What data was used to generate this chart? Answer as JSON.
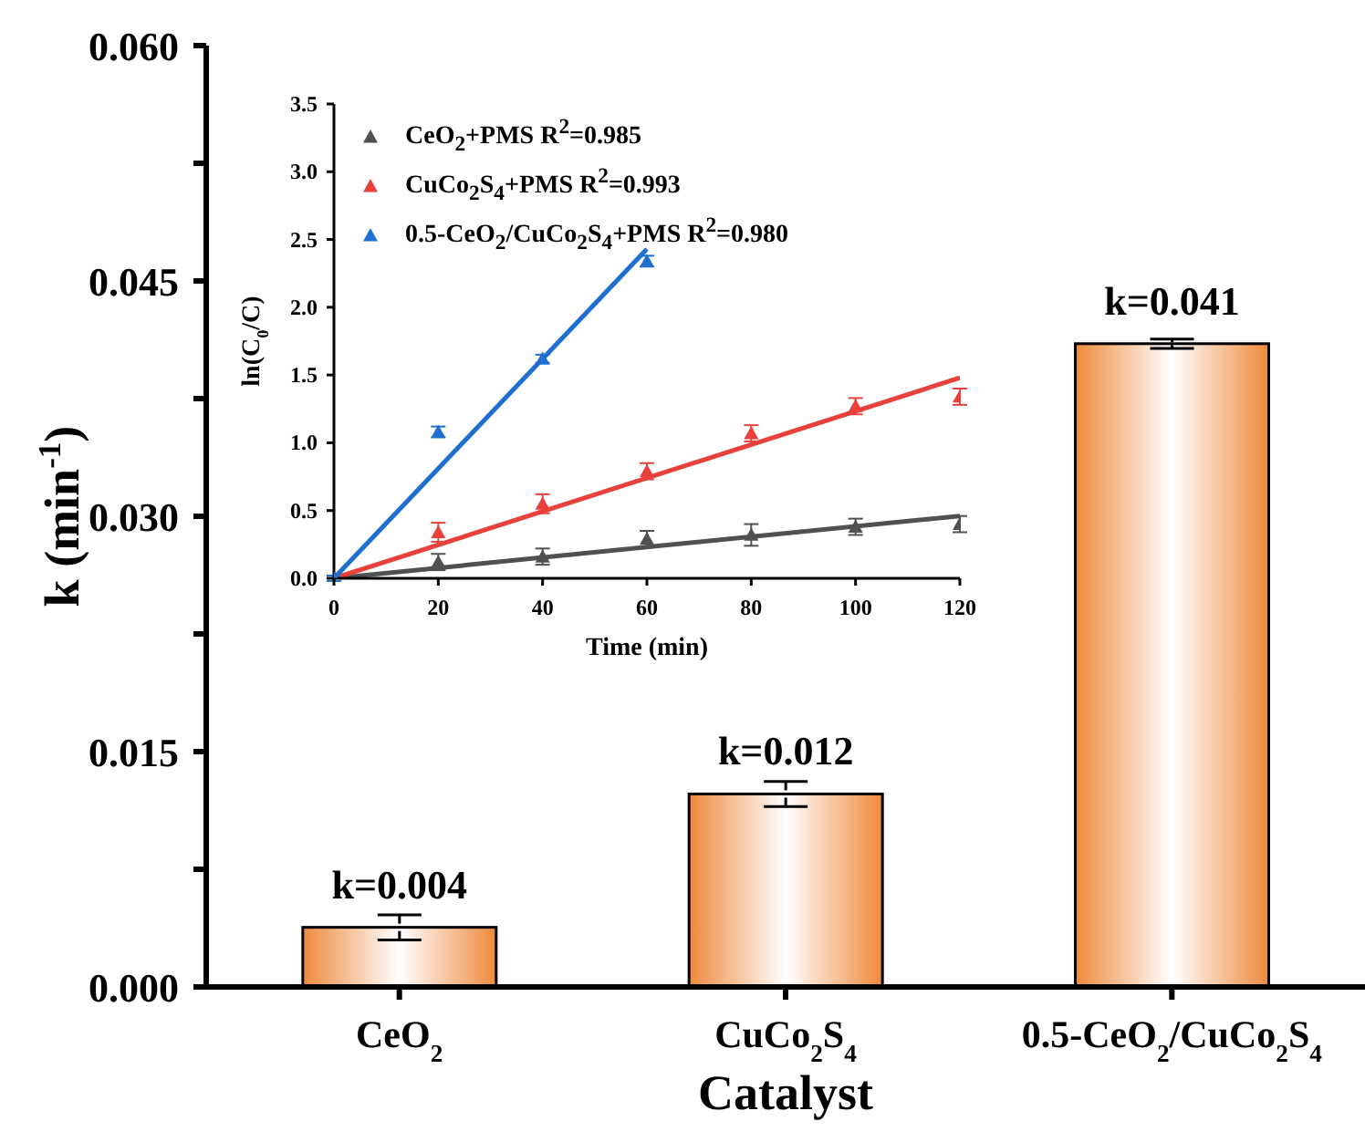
{
  "chart_data": [
    {
      "type": "bar",
      "categories": [
        "CeO$_{2}$",
        "CuCo$_{2}$S$_{4}$",
        "0.5-CeO$_{2}$/CuCo$_{2}$S$_{4}$"
      ],
      "values": [
        0.0038,
        0.0123,
        0.041
      ],
      "errors": [
        0.0008,
        0.0008,
        0.0003
      ],
      "value_labels": [
        "k=0.004",
        "k=0.012",
        "k=0.041"
      ],
      "color": "#ee8a3c",
      "xlabel": "Catalyst",
      "ylabel": "k (min$^{-1}$)",
      "ylim": [
        0,
        0.06
      ],
      "yticks": [
        {
          "value": 0,
          "label": "0.000"
        },
        {
          "value": 0.0075,
          "label": null
        },
        0.015,
        {
          "value": 0.0225,
          "label": null
        },
        {
          "value": 0.03,
          "label": "0.030"
        },
        {
          "value": 0.0375,
          "label": null
        },
        0.045,
        {
          "value": 0.0525,
          "label": null
        },
        {
          "value": 0.06,
          "label": "0.060"
        }
      ]
    },
    {
      "type": "scatter",
      "xlabel": "Time (min)",
      "ylabel": "ln(C$_{0}$/C)",
      "xlim": [
        0,
        120
      ],
      "xticks": [
        0,
        20,
        40,
        60,
        80,
        100,
        120
      ],
      "ylim": [
        0,
        3.5
      ],
      "yticks": [
        {
          "value": 0,
          "label": "0.0"
        },
        0.5,
        {
          "value": 1,
          "label": "1.0"
        },
        1.5,
        {
          "value": 2,
          "label": "2.0"
        },
        2.5,
        {
          "value": 3,
          "label": "3.0"
        },
        3.5
      ],
      "legend": "top left",
      "series": [
        {
          "type": "scatter",
          "marker": "triangle",
          "name": "CeO$_{2}$+PMS R$^{2}$=0.985",
          "color": "#505050",
          "x": [
            20,
            40,
            60,
            80,
            100,
            120
          ],
          "values": [
            0.12,
            0.16,
            0.29,
            0.32,
            0.38,
            0.4
          ],
          "errors": [
            0.06,
            0.06,
            0.06,
            0.08,
            0.06,
            0.06
          ]
        },
        {
          "type": "scatter",
          "marker": "triangle",
          "name": "CuCo$_{2}$S$_{4}$+PMS R$^{2}$=0.993",
          "color": "#e8413c",
          "x": [
            20,
            40,
            60,
            80,
            100,
            120
          ],
          "values": [
            0.34,
            0.55,
            0.79,
            1.07,
            1.27,
            1.34
          ],
          "errors": [
            0.07,
            0.07,
            0.06,
            0.06,
            0.06,
            0.06
          ]
        },
        {
          "type": "scatter",
          "marker": "triangle",
          "name": "0.5-CeO$_{2}$/CuCo$_{2}$S$_{4}$+PMS R$^{2}$=0.980",
          "color": "#1f6fd0",
          "x": [
            0,
            20,
            40,
            60
          ],
          "values": [
            0,
            1.08,
            1.62,
            2.34
          ],
          "errors": [
            0.02,
            0.04,
            0.03,
            0.04
          ]
        },
        {
          "type": "line",
          "color": "#505050",
          "x": [
            0,
            120
          ],
          "values": [
            0,
            0.46
          ]
        },
        {
          "type": "line",
          "color": "#e8413c",
          "x": [
            0,
            120
          ],
          "values": [
            0,
            1.48
          ]
        },
        {
          "type": "line",
          "color": "#1f6fd0",
          "x": [
            0,
            60
          ],
          "values": [
            0,
            2.43
          ]
        }
      ]
    }
  ]
}
